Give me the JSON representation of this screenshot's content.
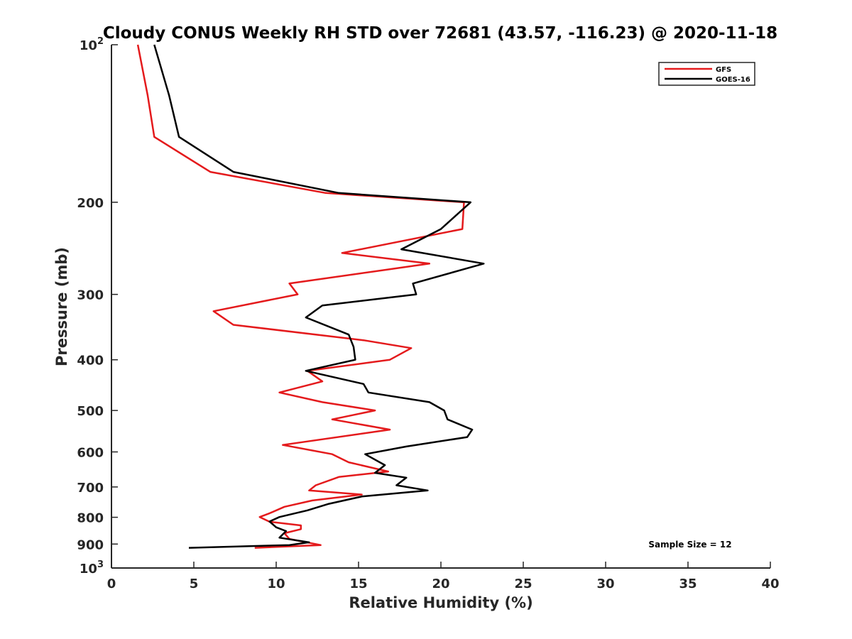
{
  "chart_data": {
    "type": "line",
    "title": "Cloudy CONUS Weekly RH STD over 72681 (43.57, -116.23) @ 2020-11-18",
    "xlabel": "Relative Humidity (%)",
    "ylabel": "Pressure (mb)",
    "xlim": [
      0,
      40
    ],
    "ylim": [
      100,
      1000
    ],
    "y_scale": "log",
    "y_reversed": true,
    "grid": false,
    "legend_position": "top-right",
    "x_ticks": [
      "0",
      "5",
      "10",
      "15",
      "20",
      "25",
      "30",
      "35",
      "40"
    ],
    "y_ticks": [
      {
        "value": 100,
        "base": "10",
        "sup": "2"
      },
      {
        "value": 200,
        "label": "200"
      },
      {
        "value": 300,
        "label": "300"
      },
      {
        "value": 400,
        "label": "400"
      },
      {
        "value": 500,
        "label": "500"
      },
      {
        "value": 600,
        "label": "600"
      },
      {
        "value": 700,
        "label": "700"
      },
      {
        "value": 800,
        "label": "800"
      },
      {
        "value": 900,
        "label": "900"
      },
      {
        "value": 1000,
        "base": "10",
        "sup": "3"
      }
    ],
    "annotation": "Sample Size = 12",
    "series": [
      {
        "name": "GFS",
        "color": "#e41a1c",
        "points": [
          [
            1.6,
            100
          ],
          [
            2.2,
            125
          ],
          [
            2.6,
            150
          ],
          [
            6.0,
            175
          ],
          [
            13.0,
            192
          ],
          [
            21.4,
            200
          ],
          [
            21.3,
            225
          ],
          [
            14.0,
            250
          ],
          [
            19.3,
            262
          ],
          [
            10.8,
            286
          ],
          [
            11.3,
            300
          ],
          [
            6.2,
            323
          ],
          [
            7.4,
            343
          ],
          [
            15.3,
            367
          ],
          [
            18.2,
            380
          ],
          [
            16.9,
            400
          ],
          [
            11.9,
            420
          ],
          [
            12.8,
            440
          ],
          [
            10.2,
            462
          ],
          [
            12.8,
            482
          ],
          [
            16.0,
            500
          ],
          [
            13.4,
            520
          ],
          [
            16.9,
            544
          ],
          [
            10.4,
            582
          ],
          [
            13.4,
            606
          ],
          [
            14.4,
            628
          ],
          [
            16.8,
            654
          ],
          [
            13.8,
            670
          ],
          [
            12.4,
            695
          ],
          [
            12.0,
            711
          ],
          [
            15.2,
            724
          ],
          [
            12.2,
            743
          ],
          [
            10.5,
            764
          ],
          [
            9.6,
            786
          ],
          [
            9.0,
            799
          ],
          [
            9.6,
            816
          ],
          [
            11.5,
            829
          ],
          [
            11.5,
            843
          ],
          [
            10.5,
            858
          ],
          [
            10.8,
            880
          ],
          [
            12.7,
            904
          ],
          [
            8.7,
            915
          ]
        ]
      },
      {
        "name": "GOES-16",
        "color": "#000000",
        "points": [
          [
            2.6,
            100
          ],
          [
            3.5,
            125
          ],
          [
            4.1,
            150
          ],
          [
            7.4,
            175
          ],
          [
            13.8,
            192
          ],
          [
            21.8,
            200
          ],
          [
            20.0,
            225
          ],
          [
            17.6,
            246
          ],
          [
            22.6,
            262
          ],
          [
            18.3,
            286
          ],
          [
            18.5,
            300
          ],
          [
            12.8,
            315
          ],
          [
            11.8,
            332
          ],
          [
            14.4,
            358
          ],
          [
            14.7,
            378
          ],
          [
            14.8,
            400
          ],
          [
            11.8,
            420
          ],
          [
            15.3,
            445
          ],
          [
            15.6,
            462
          ],
          [
            19.3,
            482
          ],
          [
            20.2,
            500
          ],
          [
            20.4,
            520
          ],
          [
            21.9,
            544
          ],
          [
            21.6,
            562
          ],
          [
            17.9,
            586
          ],
          [
            15.4,
            606
          ],
          [
            16.6,
            636
          ],
          [
            16.0,
            658
          ],
          [
            17.9,
            672
          ],
          [
            17.3,
            695
          ],
          [
            19.2,
            711
          ],
          [
            15.2,
            730
          ],
          [
            13.2,
            754
          ],
          [
            11.9,
            776
          ],
          [
            10.2,
            799
          ],
          [
            9.6,
            815
          ],
          [
            10.0,
            836
          ],
          [
            10.6,
            850
          ],
          [
            10.2,
            875
          ],
          [
            12.0,
            893
          ],
          [
            10.8,
            904
          ],
          [
            4.7,
            915
          ]
        ]
      }
    ]
  }
}
